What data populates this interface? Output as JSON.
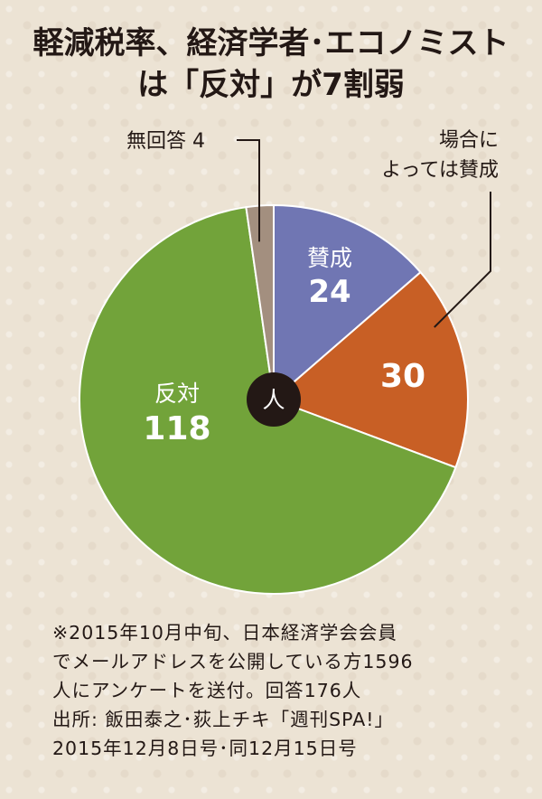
{
  "title": {
    "line1": "軽減税率、経済学者･エコノミスト",
    "line2": "は「反対」が7割弱"
  },
  "chart_data": {
    "type": "pie",
    "unit": "人",
    "slices": [
      {
        "label": "賛成",
        "value": 24,
        "color": "#7076b3"
      },
      {
        "label": "場合によっては賛成",
        "label_lines": [
          "場合に",
          "よっては賛成"
        ],
        "value": 30,
        "color": "#c85f25"
      },
      {
        "label": "反対",
        "value": 118,
        "color": "#72a33a"
      },
      {
        "label": "無回答",
        "value": 4,
        "color": "#a38f7f"
      }
    ],
    "total": 176
  },
  "notes": [
    "※2015年10月中旬、日本経済学会会員",
    "でメールアドレスを公開している方1596",
    "人にアンケートを送付。回答176人",
    "出所: 飯田泰之･荻上チキ「週刊SPA!」",
    "2015年12月8日号･同12月15日号"
  ]
}
